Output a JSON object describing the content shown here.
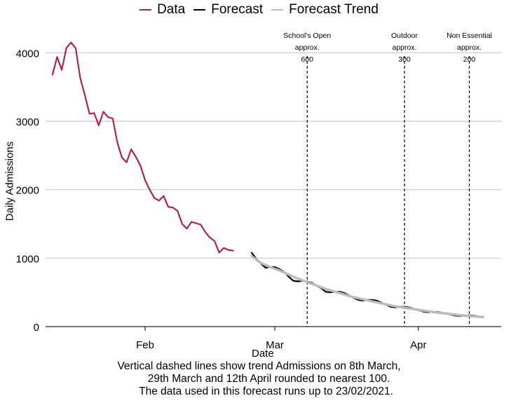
{
  "legend": {
    "items": [
      {
        "label": "Data",
        "color": "#b0234a"
      },
      {
        "label": "Forecast",
        "color": "#000000"
      },
      {
        "label": "Forecast Trend",
        "color": "#bbbbbb"
      }
    ]
  },
  "caption": {
    "lines": [
      "Vertical dashed lines show trend Admissions on 8th March,",
      "29th March and 12th April rounded to nearest 100.",
      "The data used in this forecast runs up to 23/02/2021."
    ]
  },
  "chart_data": {
    "type": "line",
    "xlabel": "Date",
    "ylabel": "Daily Admissions",
    "ylim": [
      0,
      4000
    ],
    "yticks": [
      0,
      1000,
      2000,
      3000,
      4000
    ],
    "xticks": [
      {
        "label": "Feb",
        "date": "2021-02-01"
      },
      {
        "label": "Mar",
        "date": "2021-03-01"
      },
      {
        "label": "Apr",
        "date": "2021-04-01"
      }
    ],
    "grid": true,
    "legend_position": "top",
    "series": [
      {
        "name": "Data",
        "color": "#b0234a",
        "points": [
          [
            "2021-01-12",
            3680
          ],
          [
            "2021-01-13",
            3940
          ],
          [
            "2021-01-14",
            3750
          ],
          [
            "2021-01-15",
            4070
          ],
          [
            "2021-01-16",
            4150
          ],
          [
            "2021-01-17",
            4070
          ],
          [
            "2021-01-18",
            3630
          ],
          [
            "2021-01-19",
            3380
          ],
          [
            "2021-01-20",
            3110
          ],
          [
            "2021-01-21",
            3120
          ],
          [
            "2021-01-22",
            2940
          ],
          [
            "2021-01-23",
            3140
          ],
          [
            "2021-01-24",
            3060
          ],
          [
            "2021-01-25",
            3040
          ],
          [
            "2021-01-26",
            2690
          ],
          [
            "2021-01-27",
            2470
          ],
          [
            "2021-01-28",
            2400
          ],
          [
            "2021-01-29",
            2590
          ],
          [
            "2021-01-30",
            2480
          ],
          [
            "2021-01-31",
            2350
          ],
          [
            "2021-02-01",
            2140
          ],
          [
            "2021-02-02",
            2000
          ],
          [
            "2021-02-03",
            1880
          ],
          [
            "2021-02-04",
            1840
          ],
          [
            "2021-02-05",
            1910
          ],
          [
            "2021-02-06",
            1750
          ],
          [
            "2021-02-07",
            1740
          ],
          [
            "2021-02-08",
            1690
          ],
          [
            "2021-02-09",
            1500
          ],
          [
            "2021-02-10",
            1430
          ],
          [
            "2021-02-11",
            1530
          ],
          [
            "2021-02-12",
            1510
          ],
          [
            "2021-02-13",
            1490
          ],
          [
            "2021-02-14",
            1380
          ],
          [
            "2021-02-15",
            1300
          ],
          [
            "2021-02-16",
            1250
          ],
          [
            "2021-02-17",
            1080
          ],
          [
            "2021-02-18",
            1150
          ],
          [
            "2021-02-19",
            1120
          ],
          [
            "2021-02-20",
            1110
          ]
        ]
      },
      {
        "name": "Forecast",
        "color": "#000000",
        "points": [
          [
            "2021-02-24",
            1080
          ],
          [
            "2021-02-25",
            990
          ],
          [
            "2021-02-26",
            920
          ],
          [
            "2021-02-27",
            860
          ],
          [
            "2021-02-28",
            870
          ],
          [
            "2021-03-01",
            870
          ],
          [
            "2021-03-02",
            840
          ],
          [
            "2021-03-03",
            800
          ],
          [
            "2021-03-04",
            730
          ],
          [
            "2021-03-05",
            670
          ],
          [
            "2021-03-06",
            660
          ],
          [
            "2021-03-07",
            670
          ],
          [
            "2021-03-08",
            660
          ],
          [
            "2021-03-09",
            640
          ],
          [
            "2021-03-10",
            600
          ],
          [
            "2021-03-11",
            560
          ],
          [
            "2021-03-12",
            510
          ],
          [
            "2021-03-13",
            500
          ],
          [
            "2021-03-14",
            510
          ],
          [
            "2021-03-15",
            510
          ],
          [
            "2021-03-16",
            490
          ],
          [
            "2021-03-17",
            460
          ],
          [
            "2021-03-18",
            420
          ],
          [
            "2021-03-19",
            390
          ],
          [
            "2021-03-20",
            380
          ],
          [
            "2021-03-21",
            390
          ],
          [
            "2021-03-22",
            390
          ],
          [
            "2021-03-23",
            380
          ],
          [
            "2021-03-24",
            350
          ],
          [
            "2021-03-25",
            320
          ],
          [
            "2021-03-26",
            290
          ],
          [
            "2021-03-27",
            280
          ],
          [
            "2021-03-28",
            290
          ],
          [
            "2021-03-29",
            290
          ],
          [
            "2021-03-30",
            280
          ],
          [
            "2021-03-31",
            260
          ],
          [
            "2021-04-01",
            240
          ],
          [
            "2021-04-02",
            220
          ],
          [
            "2021-04-03",
            210
          ],
          [
            "2021-04-04",
            215
          ],
          [
            "2021-04-05",
            215
          ],
          [
            "2021-04-06",
            205
          ],
          [
            "2021-04-07",
            190
          ],
          [
            "2021-04-08",
            175
          ],
          [
            "2021-04-09",
            160
          ],
          [
            "2021-04-10",
            155
          ],
          [
            "2021-04-11",
            160
          ],
          [
            "2021-04-12",
            165
          ],
          [
            "2021-04-13",
            160
          ],
          [
            "2021-04-14",
            150
          ],
          [
            "2021-04-15",
            140
          ]
        ]
      },
      {
        "name": "Forecast Trend",
        "color": "#bbbbbb",
        "points": [
          [
            "2021-02-24",
            1030
          ],
          [
            "2021-02-26",
            930
          ],
          [
            "2021-02-28",
            870
          ],
          [
            "2021-03-02",
            820
          ],
          [
            "2021-03-04",
            760
          ],
          [
            "2021-03-06",
            700
          ],
          [
            "2021-03-08",
            650
          ],
          [
            "2021-03-10",
            600
          ],
          [
            "2021-03-12",
            550
          ],
          [
            "2021-03-14",
            510
          ],
          [
            "2021-03-16",
            470
          ],
          [
            "2021-03-18",
            430
          ],
          [
            "2021-03-20",
            400
          ],
          [
            "2021-03-22",
            370
          ],
          [
            "2021-03-24",
            340
          ],
          [
            "2021-03-26",
            310
          ],
          [
            "2021-03-28",
            285
          ],
          [
            "2021-03-30",
            265
          ],
          [
            "2021-04-01",
            245
          ],
          [
            "2021-04-03",
            225
          ],
          [
            "2021-04-05",
            205
          ],
          [
            "2021-04-07",
            190
          ],
          [
            "2021-04-09",
            175
          ],
          [
            "2021-04-11",
            160
          ],
          [
            "2021-04-13",
            150
          ],
          [
            "2021-04-15",
            140
          ]
        ]
      }
    ],
    "annotations": [
      {
        "date": "2021-03-08",
        "lines": [
          "School's Open",
          "approx.",
          "600"
        ]
      },
      {
        "date": "2021-03-29",
        "lines": [
          "Outdoor",
          "approx.",
          "300"
        ]
      },
      {
        "date": "2021-04-12",
        "lines": [
          "Non Essential",
          "approx.",
          "200"
        ]
      }
    ]
  }
}
